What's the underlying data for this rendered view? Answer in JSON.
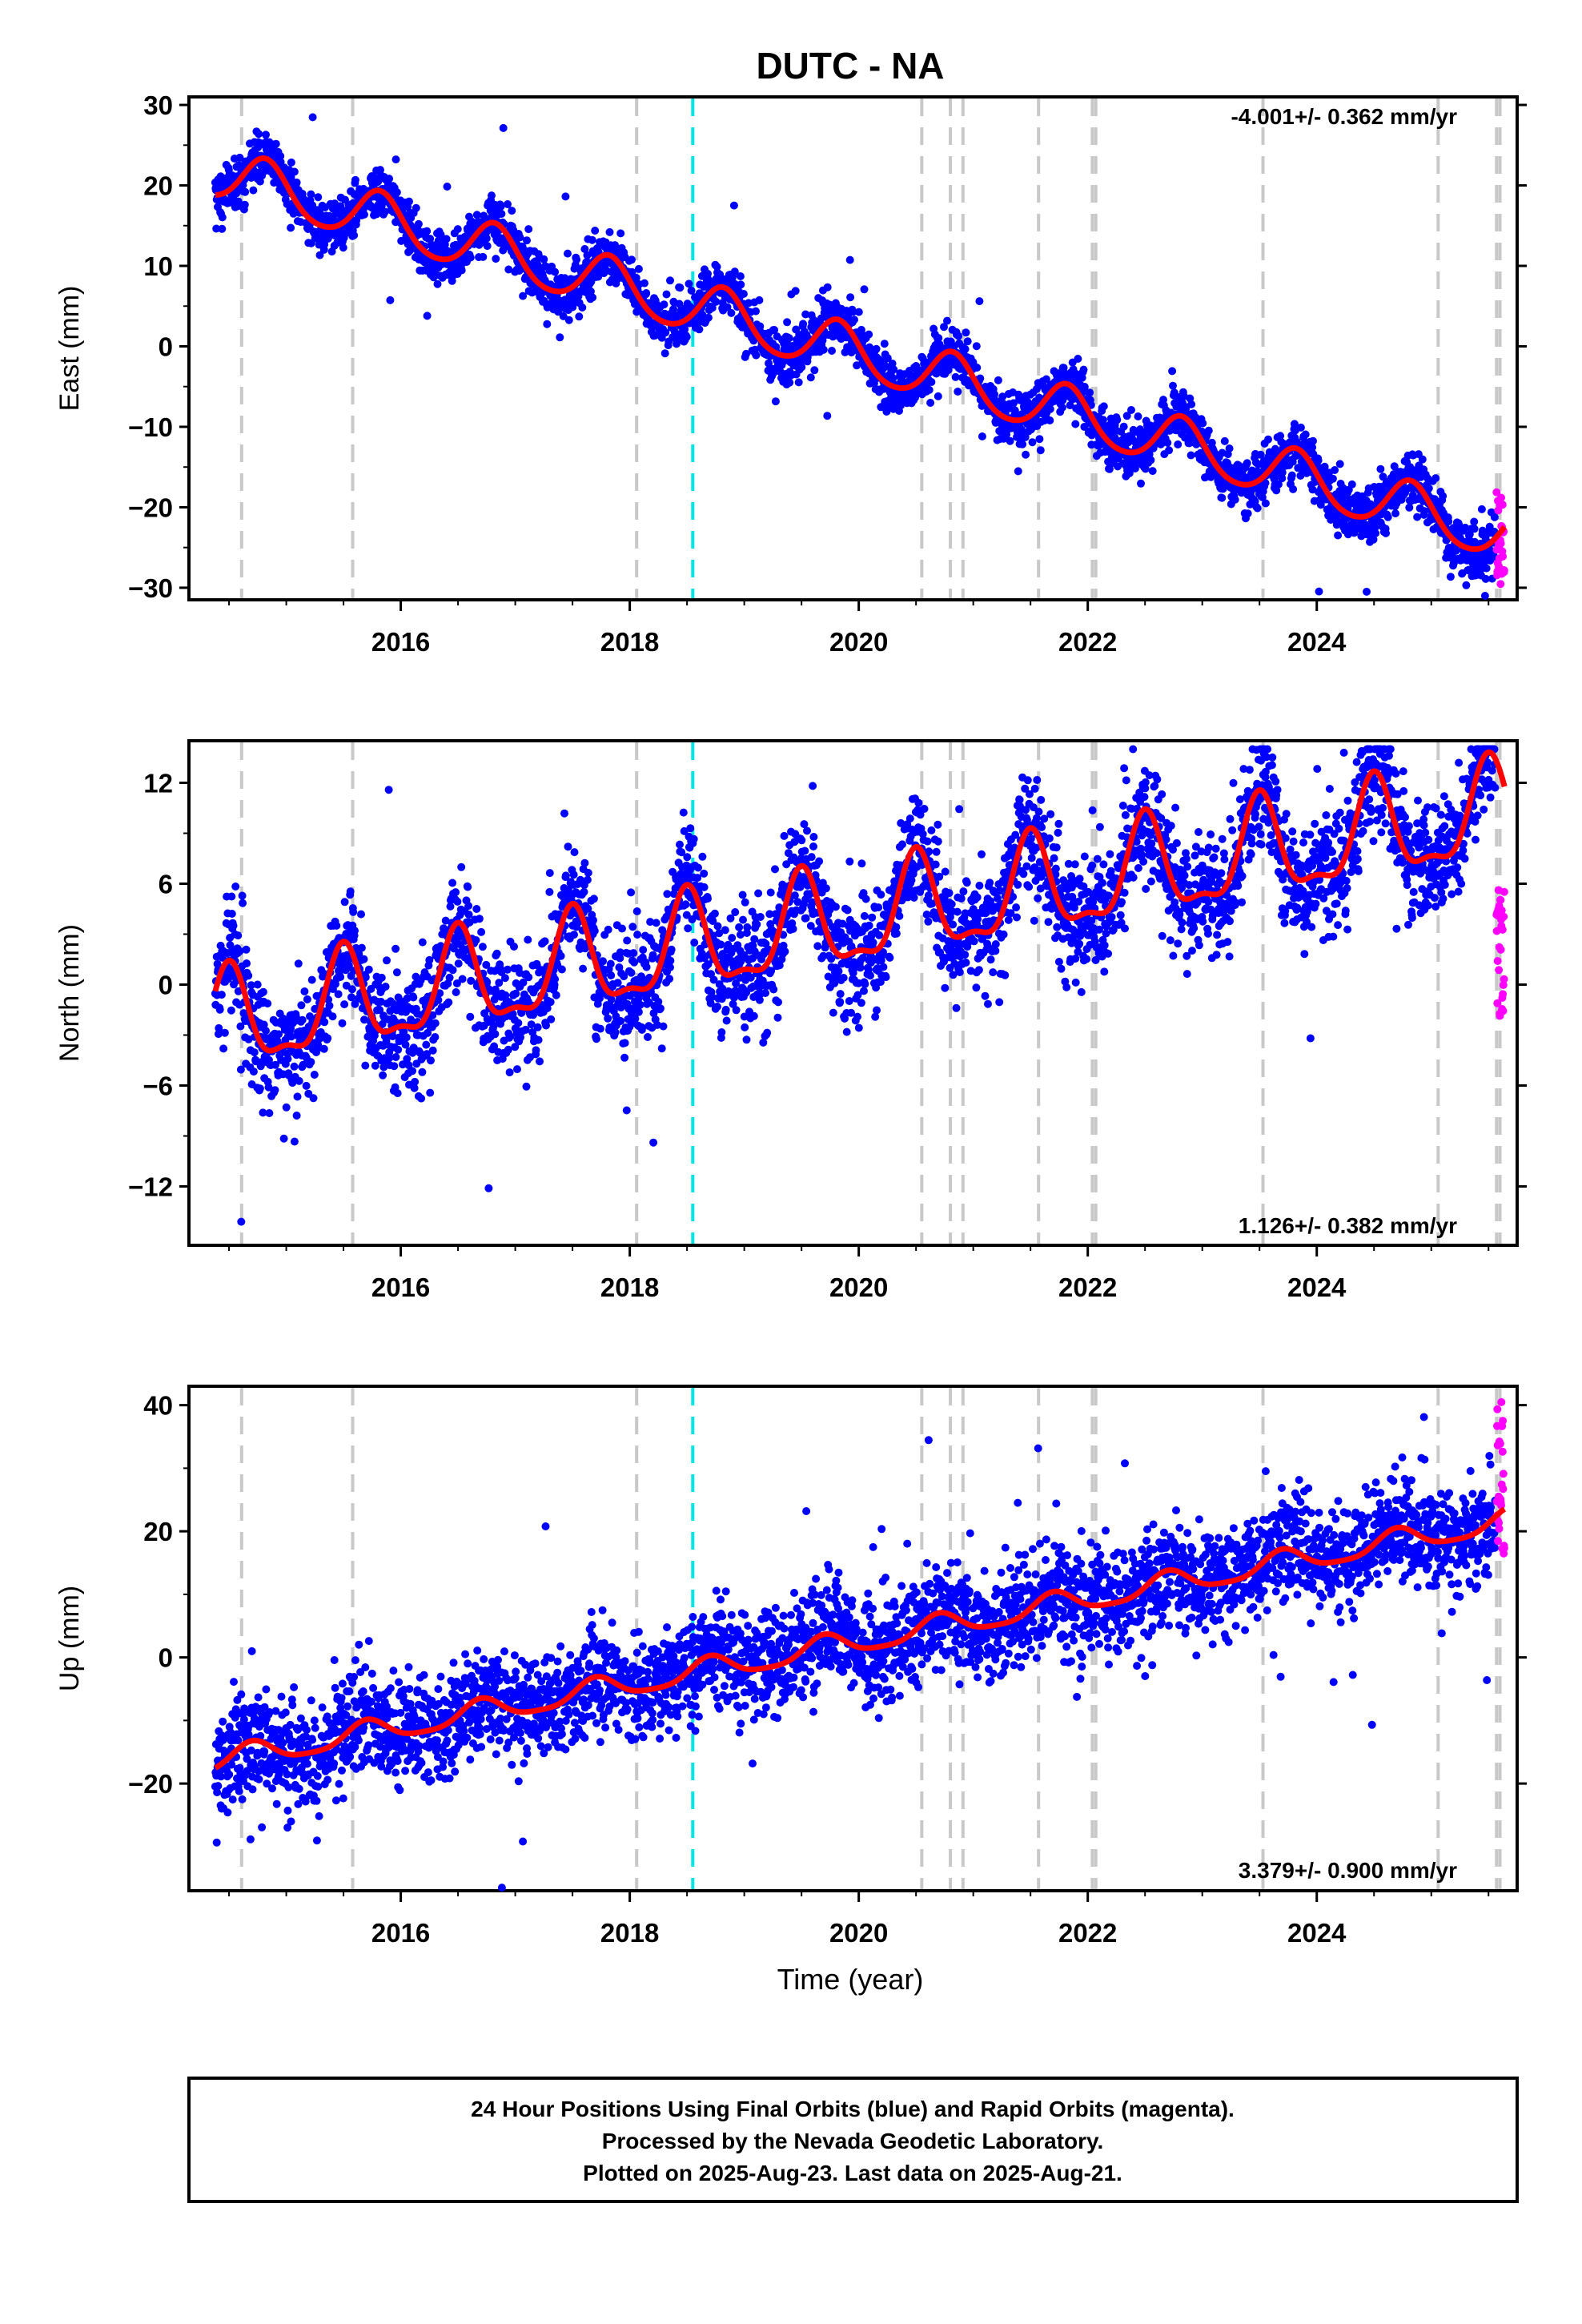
{
  "title": "DUTC - NA",
  "xlabel": "Time (year)",
  "footer": {
    "line1": "24 Hour Positions Using Final Orbits (blue) and Rapid Orbits (magenta).",
    "line2": "Processed by the Nevada Geodetic Laboratory.",
    "line3": "Plotted on 2025-Aug-23. Last data on 2025-Aug-21."
  },
  "colors": {
    "final": "#0000ff",
    "rapid": "#ff00ff",
    "model": "#ff0000",
    "equipment_change": "#c8c8c8",
    "earthquake": "#00e6e6"
  },
  "chart_data": [
    {
      "type": "scatter",
      "ylabel": "East (mm)",
      "rate": "-4.001+/- 0.362 mm/yr",
      "rate_position": "top-right",
      "xlim": [
        2014.15,
        2025.75
      ],
      "ylim": [
        -31.5,
        31
      ],
      "yticks": [
        30,
        20,
        10,
        0,
        -10,
        -20,
        -30
      ],
      "ytick_labels": [
        "30",
        "20",
        "10",
        "0",
        "−10",
        "−20",
        "−30"
      ],
      "xticks": [
        2016,
        2018,
        2020,
        2022,
        2024
      ],
      "xtick_labels": [
        "2016",
        "2018",
        "2020",
        "2022",
        "2024"
      ],
      "data_start": 2014.38,
      "data_end": 2025.64,
      "model": {
        "offset": 21.5,
        "rate": -4.001,
        "annual_amp": 3.2,
        "annual_peak": 0.82,
        "semi_amp": 0.4
      },
      "scatter_sigma": 1.6,
      "rapid_range": [
        -30,
        -18
      ]
    },
    {
      "type": "scatter",
      "ylabel": "North (mm)",
      "rate": "1.126+/- 0.382 mm/yr",
      "rate_position": "bottom-right",
      "xlim": [
        2014.15,
        2025.75
      ],
      "ylim": [
        -15.5,
        14.5
      ],
      "yticks": [
        12,
        6,
        0,
        -6,
        -12
      ],
      "ytick_labels": [
        "12",
        "6",
        "0",
        "−6",
        "−12"
      ],
      "xticks": [
        2016,
        2018,
        2020,
        2022,
        2024
      ],
      "xtick_labels": [
        "2016",
        "2018",
        "2020",
        "2022",
        "2024"
      ],
      "data_start": 2014.38,
      "data_end": 2025.64,
      "model": {
        "offset": -2.5,
        "rate": 1.126,
        "annual_amp": 2.8,
        "annual_peak": 0.5,
        "semi_amp": 1.0
      },
      "scatter_sigma": 1.7,
      "rapid_range": [
        -2,
        6
      ]
    },
    {
      "type": "scatter",
      "ylabel": "Up (mm)",
      "rate": "3.379+/- 0.900 mm/yr",
      "rate_position": "bottom-right",
      "xlim": [
        2014.15,
        2025.75
      ],
      "ylim": [
        -37,
        43
      ],
      "yticks": [
        40,
        20,
        0,
        -20
      ],
      "ytick_labels": [
        "40",
        "20",
        "0",
        "−20"
      ],
      "xticks": [
        2016,
        2018,
        2020,
        2022,
        2024
      ],
      "xtick_labels": [
        "2016",
        "2018",
        "2020",
        "2022",
        "2024"
      ],
      "data_start": 2014.38,
      "data_end": 2025.64,
      "model": {
        "offset": -16.5,
        "rate": 3.379,
        "annual_amp": 1.8,
        "annual_peak": 0.7,
        "semi_amp": 0.4
      },
      "scatter_sigma": 4.2,
      "rapid_range": [
        16,
        41
      ]
    }
  ],
  "equipment_changes": [
    2014.61,
    2015.58,
    2018.06,
    2020.55,
    2020.8,
    2020.91,
    2021.57,
    2022.04,
    2022.07,
    2023.53,
    2025.06,
    2025.57,
    2025.6
  ],
  "earthquakes": [
    2018.55
  ]
}
